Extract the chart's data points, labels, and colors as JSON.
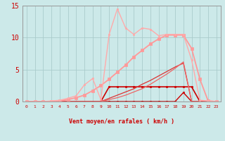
{
  "x_labels": [
    0,
    1,
    2,
    3,
    4,
    5,
    6,
    7,
    8,
    9,
    10,
    11,
    12,
    13,
    14,
    15,
    16,
    17,
    18,
    19,
    20,
    21,
    22,
    23
  ],
  "xlabel": "Vent moyen/en rafales ( km/h )",
  "ylim": [
    0,
    15
  ],
  "yticks": [
    0,
    5,
    10,
    15
  ],
  "bg_color": "#cce9e9",
  "grid_color": "#aacccc",
  "line_color_dark": "#cc0000",
  "arrow_down_x": [
    0,
    1,
    2,
    3,
    4,
    5,
    6,
    7,
    8,
    9,
    19,
    20,
    21,
    22,
    23
  ],
  "arrow_up_x": [
    10,
    11,
    12,
    13,
    14,
    15,
    16,
    17,
    18
  ],
  "series": [
    {
      "x": [
        0,
        1,
        2,
        3,
        4,
        5,
        6,
        7,
        8,
        9,
        10,
        11,
        12,
        13,
        14,
        15,
        16,
        17,
        18,
        19,
        20,
        21,
        22,
        23
      ],
      "y": [
        0,
        0,
        0,
        0,
        0,
        0,
        0,
        0,
        0,
        0,
        2.3,
        2.3,
        2.3,
        2.3,
        2.3,
        2.3,
        2.3,
        2.3,
        2.3,
        2.3,
        2.3,
        0,
        0,
        0
      ],
      "color": "#cc0000",
      "lw": 1.2,
      "marker": "s",
      "ms": 2.0
    },
    {
      "x": [
        0,
        1,
        2,
        3,
        4,
        5,
        6,
        7,
        8,
        9,
        10,
        11,
        12,
        13,
        14,
        15,
        16,
        17,
        18,
        19,
        20,
        21,
        22,
        23
      ],
      "y": [
        0,
        0,
        0,
        0,
        0,
        0,
        0,
        0,
        0,
        0,
        0,
        0,
        0,
        0,
        0,
        0,
        0,
        0,
        0,
        1.4,
        0,
        0,
        0,
        0
      ],
      "color": "#cc0000",
      "lw": 1.0,
      "marker": "s",
      "ms": 2.0
    },
    {
      "x": [
        0,
        1,
        2,
        3,
        4,
        5,
        6,
        7,
        8,
        9,
        10,
        11,
        12,
        13,
        14,
        15,
        16,
        17,
        18,
        19,
        20,
        21,
        22,
        23
      ],
      "y": [
        0,
        0,
        0,
        0,
        0,
        0,
        0,
        0,
        0,
        0,
        0.5,
        1.0,
        1.5,
        2.0,
        2.7,
        3.3,
        4.0,
        4.7,
        5.4,
        6.0,
        0,
        0,
        0,
        0
      ],
      "color": "#dd3333",
      "lw": 0.9,
      "marker": null,
      "ms": 0
    },
    {
      "x": [
        0,
        1,
        2,
        3,
        4,
        5,
        6,
        7,
        8,
        9,
        10,
        11,
        12,
        13,
        14,
        15,
        16,
        17,
        18,
        19,
        20,
        21,
        22,
        23
      ],
      "y": [
        0,
        0,
        0,
        0,
        0,
        0,
        0,
        0,
        0,
        0,
        0.3,
        0.6,
        1.0,
        1.5,
        2.0,
        2.7,
        3.5,
        4.3,
        5.2,
        6.2,
        0,
        0,
        0,
        0
      ],
      "color": "#ee6666",
      "lw": 0.9,
      "marker": null,
      "ms": 0
    },
    {
      "x": [
        0,
        1,
        2,
        3,
        4,
        5,
        6,
        7,
        8,
        9,
        10,
        11,
        12,
        13,
        14,
        15,
        16,
        17,
        18,
        19,
        20,
        21,
        22,
        23
      ],
      "y": [
        0,
        0,
        0,
        0,
        0.1,
        0.3,
        0.6,
        1.0,
        1.7,
        2.5,
        3.5,
        4.6,
        5.7,
        7.0,
        8.0,
        9.0,
        9.8,
        10.4,
        10.4,
        10.4,
        8.3,
        3.5,
        0.1,
        0
      ],
      "color": "#ff9999",
      "lw": 1.3,
      "marker": "s",
      "ms": 2.5
    },
    {
      "x": [
        0,
        1,
        2,
        3,
        4,
        5,
        6,
        7,
        8,
        9,
        10,
        11,
        12,
        13,
        14,
        15,
        16,
        17,
        18,
        19,
        20,
        21,
        22,
        23
      ],
      "y": [
        0,
        0,
        0,
        0.1,
        0.2,
        0.5,
        0.9,
        2.6,
        3.6,
        0.3,
        10.5,
        14.5,
        11.5,
        10.5,
        11.5,
        11.3,
        10.3,
        10.5,
        10.5,
        10.5,
        6.5,
        0.2,
        0.1,
        0
      ],
      "color": "#ffaaaa",
      "lw": 1.0,
      "marker": "s",
      "ms": 2.0
    }
  ]
}
